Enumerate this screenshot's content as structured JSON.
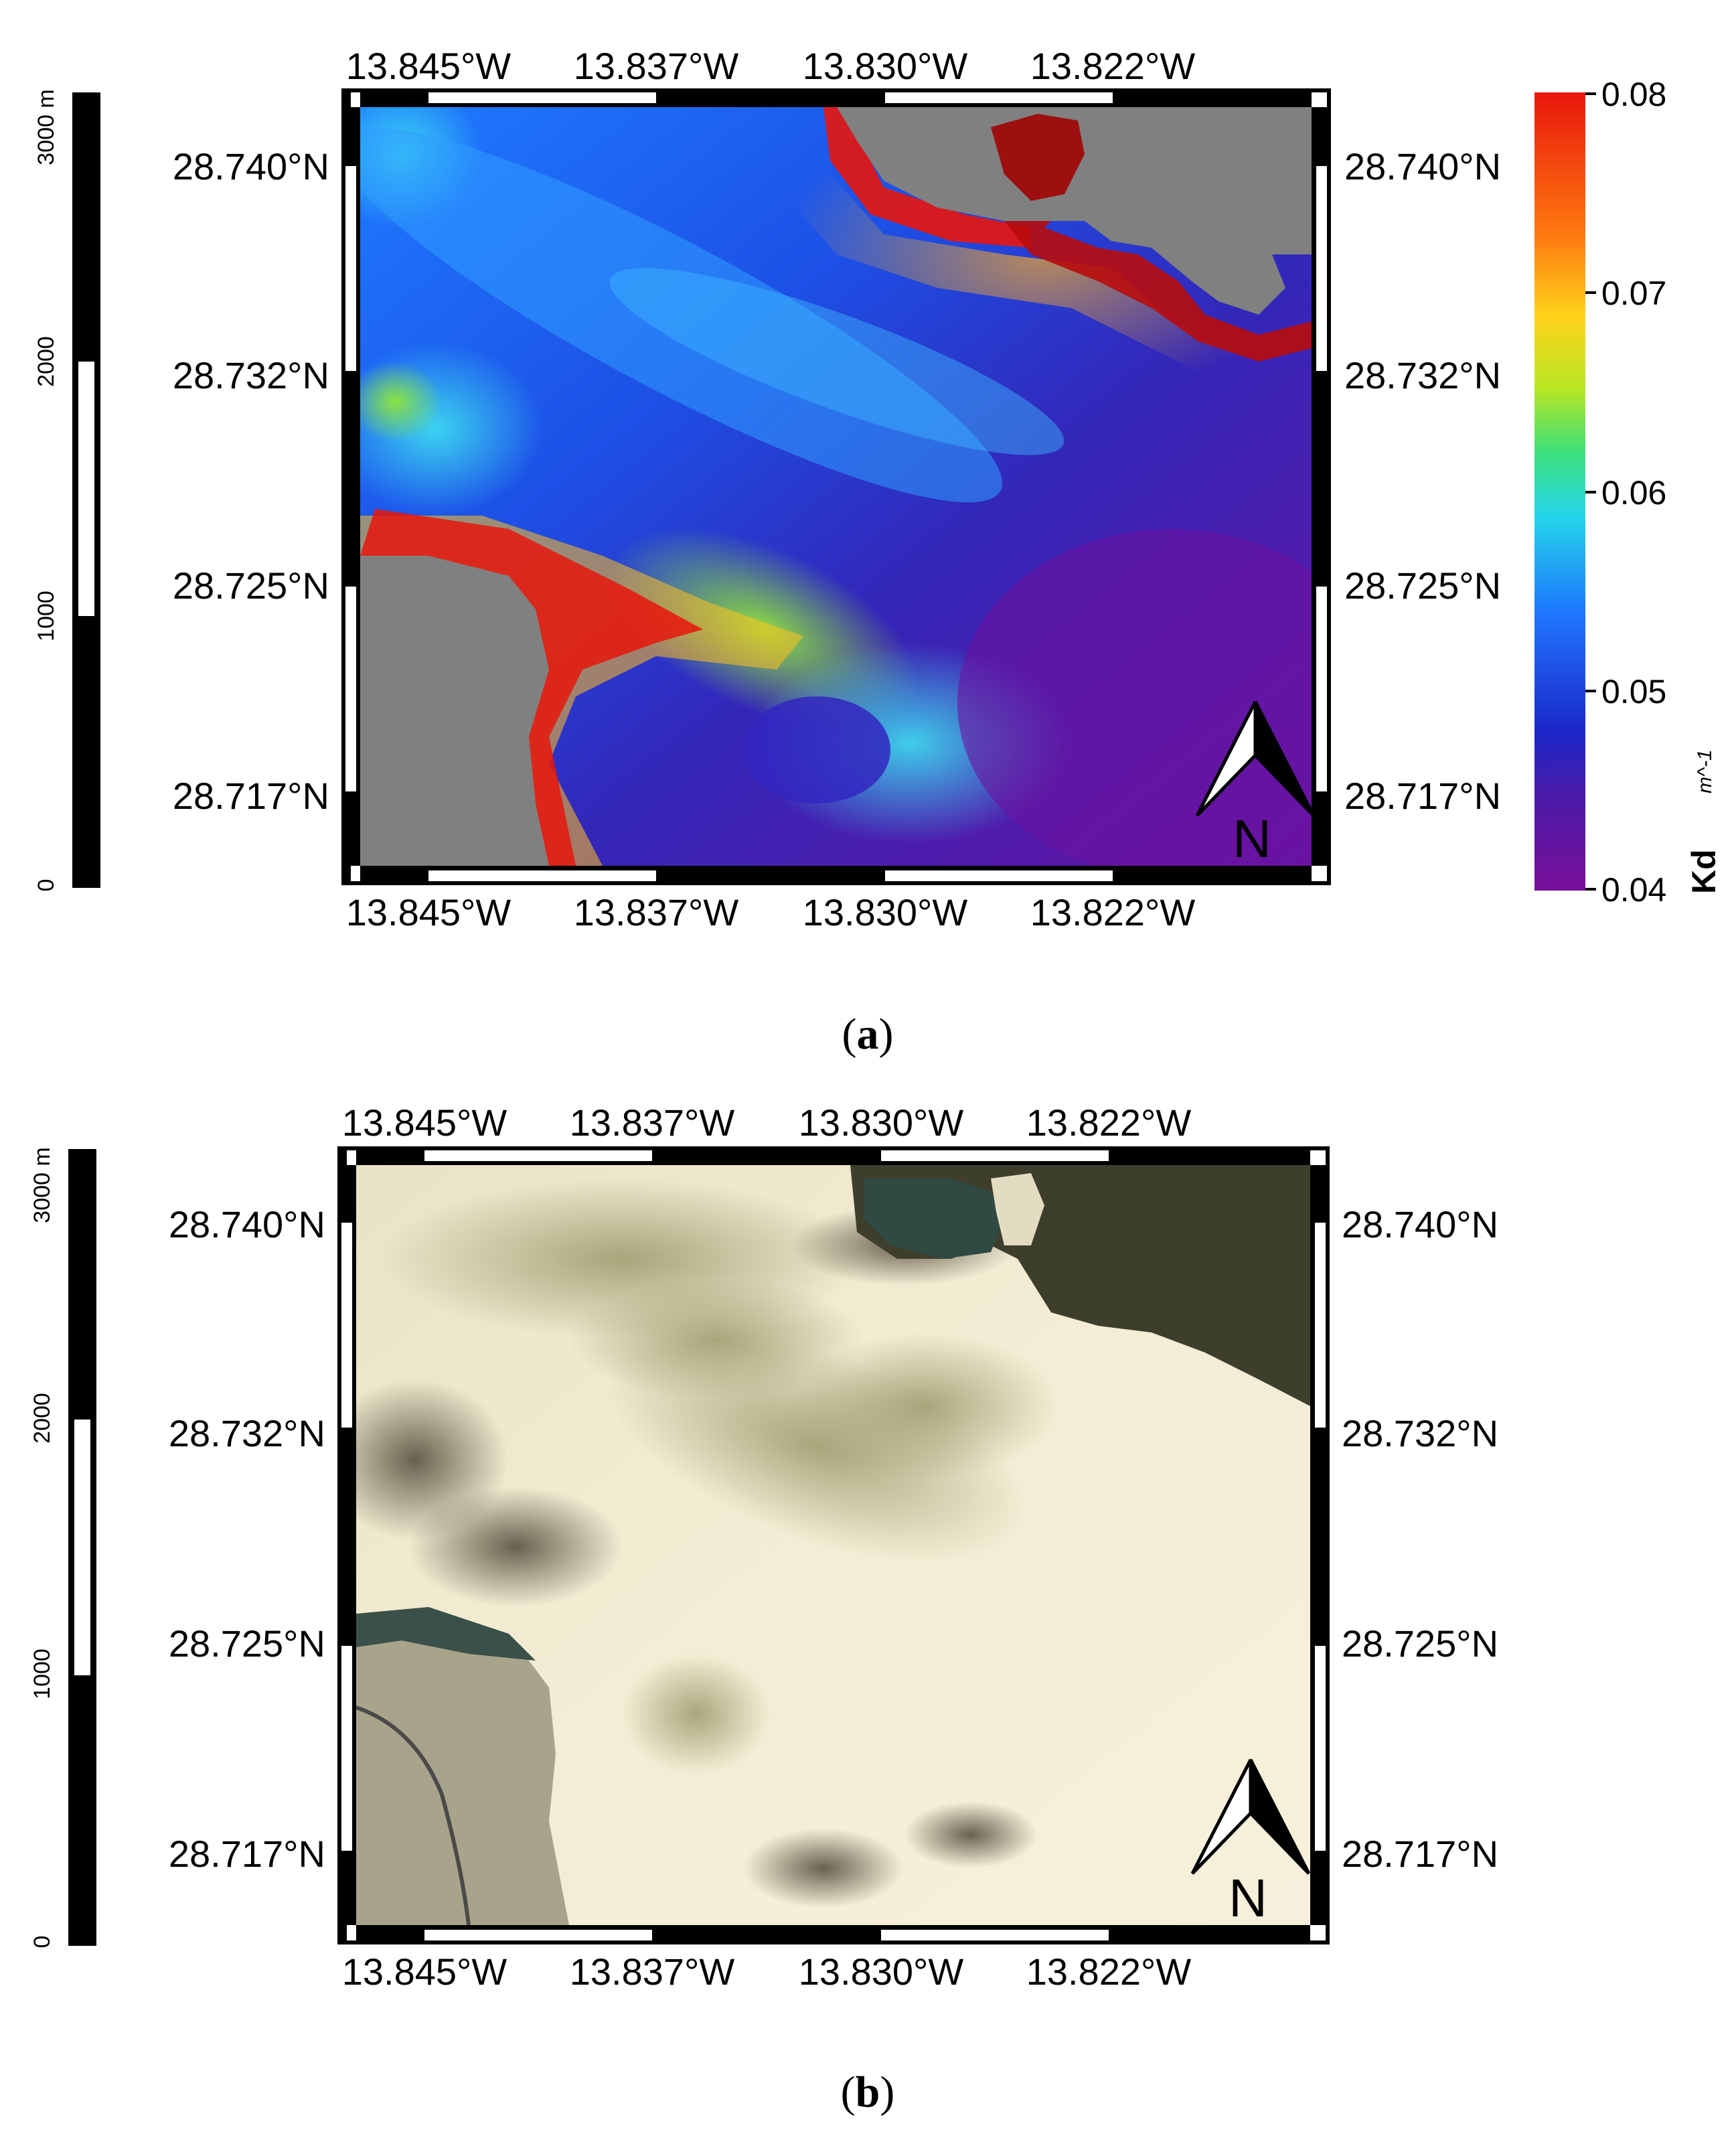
{
  "panel_a": {
    "caption_open": "(",
    "caption_letter": "a",
    "caption_close": ")",
    "lon_ticks": [
      "13.845°W",
      "13.837°W",
      "13.830°W",
      "13.822°W"
    ],
    "lat_ticks": [
      "28.740°N",
      "28.732°N",
      "28.725°N",
      "28.717°N"
    ],
    "scalebar": {
      "unit_label": "3000 m",
      "ticks": [
        "2000",
        "1000",
        "0"
      ]
    },
    "north_label": "N",
    "colorbar": {
      "title": "Kd",
      "unit": "m^-1",
      "ticks": [
        "0.08",
        "0.07",
        "0.06",
        "0.05",
        "0.04"
      ],
      "colors": [
        "#7a0f9a",
        "#3c1fb0",
        "#1a2ad8",
        "#1e78ff",
        "#24d6e8",
        "#3ee07a",
        "#b9e623",
        "#ffd21a",
        "#ff7a10",
        "#e8160c"
      ]
    },
    "land_color": "#808080"
  },
  "panel_b": {
    "caption_open": "(",
    "caption_letter": "b",
    "caption_close": ")",
    "lon_ticks": [
      "13.845°W",
      "13.837°W",
      "13.830°W",
      "13.822°W"
    ],
    "lat_ticks": [
      "28.740°N",
      "28.732°N",
      "28.725°N",
      "28.717°N"
    ],
    "scalebar": {
      "unit_label": "3000 m",
      "ticks": [
        "2000",
        "1000",
        "0"
      ]
    },
    "north_label": "N"
  }
}
